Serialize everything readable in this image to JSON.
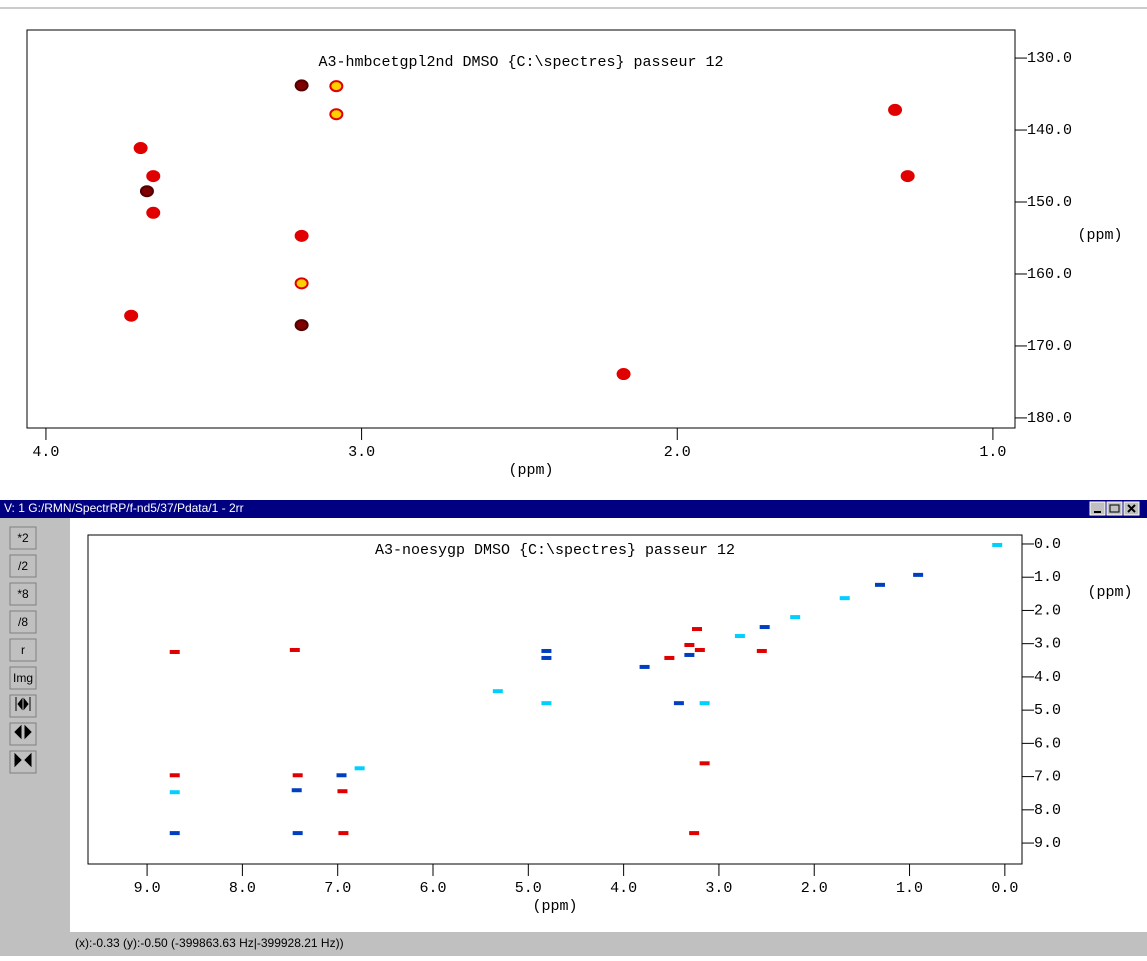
{
  "chart_data": [
    {
      "type": "scatter",
      "title": "A3-hmbcetgpl2nd DMSO {C:\\spectres} passeur 12",
      "x_label": "(ppm)",
      "y_label": "(ppm)",
      "xlim": [
        4.06,
        0.93
      ],
      "ylim": [
        126.1,
        181.4
      ],
      "xticks": [
        {
          "value": 4,
          "label": "4.0"
        },
        {
          "value": 3,
          "label": "3.0"
        },
        {
          "value": 2,
          "label": "2.0"
        },
        {
          "value": 1,
          "label": "1.0"
        }
      ],
      "yticks": [
        {
          "value": 130,
          "label": "130.0"
        },
        {
          "value": 140,
          "label": "140.0"
        },
        {
          "value": 150,
          "label": "150.0"
        },
        {
          "value": 160,
          "label": "160.0"
        },
        {
          "value": 170,
          "label": "170.0"
        },
        {
          "value": 180,
          "label": "180.0"
        }
      ],
      "x": [
        3.7,
        3.66,
        3.68,
        3.66,
        3.73,
        3.19,
        3.08,
        3.08,
        3.19,
        3.19,
        3.19,
        2.17,
        1.31,
        1.27
      ],
      "values": [
        142.5,
        146.4,
        148.5,
        151.5,
        165.8,
        133.8,
        133.9,
        137.8,
        154.7,
        161.3,
        167.1,
        173.9,
        137.2,
        146.4
      ],
      "colors": [
        "#e00000",
        "#e00000",
        "#800000",
        "#e00000",
        "#e00000",
        "#800000",
        "#ffd000",
        "#ffd000",
        "#e00000",
        "#ffd000",
        "#800000",
        "#e00000",
        "#e00000",
        "#e00000"
      ]
    },
    {
      "type": "scatter",
      "title": "A3-noesygp DMSO {C:\\spectres} passeur 12",
      "x_label": "(ppm)",
      "y_label": "(ppm)",
      "xlim": [
        9.62,
        -0.18
      ],
      "ylim": [
        -0.27,
        9.63
      ],
      "xticks": [
        {
          "value": 9,
          "label": "9.0"
        },
        {
          "value": 8,
          "label": "8.0"
        },
        {
          "value": 7,
          "label": "7.0"
        },
        {
          "value": 6,
          "label": "6.0"
        },
        {
          "value": 5,
          "label": "5.0"
        },
        {
          "value": 4,
          "label": "4.0"
        },
        {
          "value": 3,
          "label": "3.0"
        },
        {
          "value": 2,
          "label": "2.0"
        },
        {
          "value": 1,
          "label": "1.0"
        },
        {
          "value": 0,
          "label": "0.0"
        }
      ],
      "yticks": [
        {
          "value": 0,
          "label": "0.0"
        },
        {
          "value": 1,
          "label": "1.0"
        },
        {
          "value": 2,
          "label": "2.0"
        },
        {
          "value": 3,
          "label": "3.0"
        },
        {
          "value": 4,
          "label": "4.0"
        },
        {
          "value": 5,
          "label": "5.0"
        },
        {
          "value": 6,
          "label": "6.0"
        },
        {
          "value": 7,
          "label": "7.0"
        },
        {
          "value": 8,
          "label": "8.0"
        },
        {
          "value": 9,
          "label": "9.0"
        }
      ],
      "x": [
        8.71,
        8.71,
        8.71,
        8.71,
        7.45,
        7.42,
        7.43,
        7.42,
        6.96,
        6.95,
        6.94,
        6.77,
        5.32,
        4.81,
        4.81,
        4.81,
        3.78,
        3.52,
        3.31,
        3.2,
        3.31,
        3.42,
        3.15,
        3.26,
        3.15,
        2.78,
        2.55,
        2.52,
        2.2,
        1.68,
        1.31,
        0.91,
        0.08,
        3.23
      ],
      "values": [
        3.25,
        6.96,
        7.47,
        8.7,
        3.19,
        6.96,
        7.41,
        8.7,
        6.96,
        7.44,
        8.7,
        6.75,
        4.43,
        3.22,
        3.43,
        4.79,
        3.7,
        3.43,
        3.34,
        3.19,
        3.04,
        4.79,
        4.79,
        8.7,
        6.6,
        2.77,
        3.22,
        2.5,
        2.2,
        1.63,
        1.23,
        0.93,
        0.03,
        2.56
      ],
      "colors": [
        "#e00000",
        "#e00000",
        "#00d0ff",
        "#0040c0",
        "#e00000",
        "#e00000",
        "#0040c0",
        "#0040c0",
        "#0040c0",
        "#e00000",
        "#e00000",
        "#00d0ff",
        "#00d0ff",
        "#0040c0",
        "#0040c0",
        "#00d0ff",
        "#0040c0",
        "#e00000",
        "#0040c0",
        "#e00000",
        "#e00000",
        "#0040c0",
        "#00d0ff",
        "#e00000",
        "#e00000",
        "#00d0ff",
        "#e00000",
        "#0040c0",
        "#00d0ff",
        "#00d0ff",
        "#0040c0",
        "#0040c0",
        "#00d0ff",
        "#e00000"
      ]
    }
  ],
  "window": {
    "title": "V: 1  G:/RMN/SpectrRP/f-nd5/37/Pdata/1 - 2rr",
    "buttons": [
      "*2",
      "/2",
      "*8",
      "/8",
      "r",
      "Img"
    ],
    "status": "(x):-0.33 (y):-0.50 (-399863.63 Hz|-399928.21 Hz))"
  }
}
